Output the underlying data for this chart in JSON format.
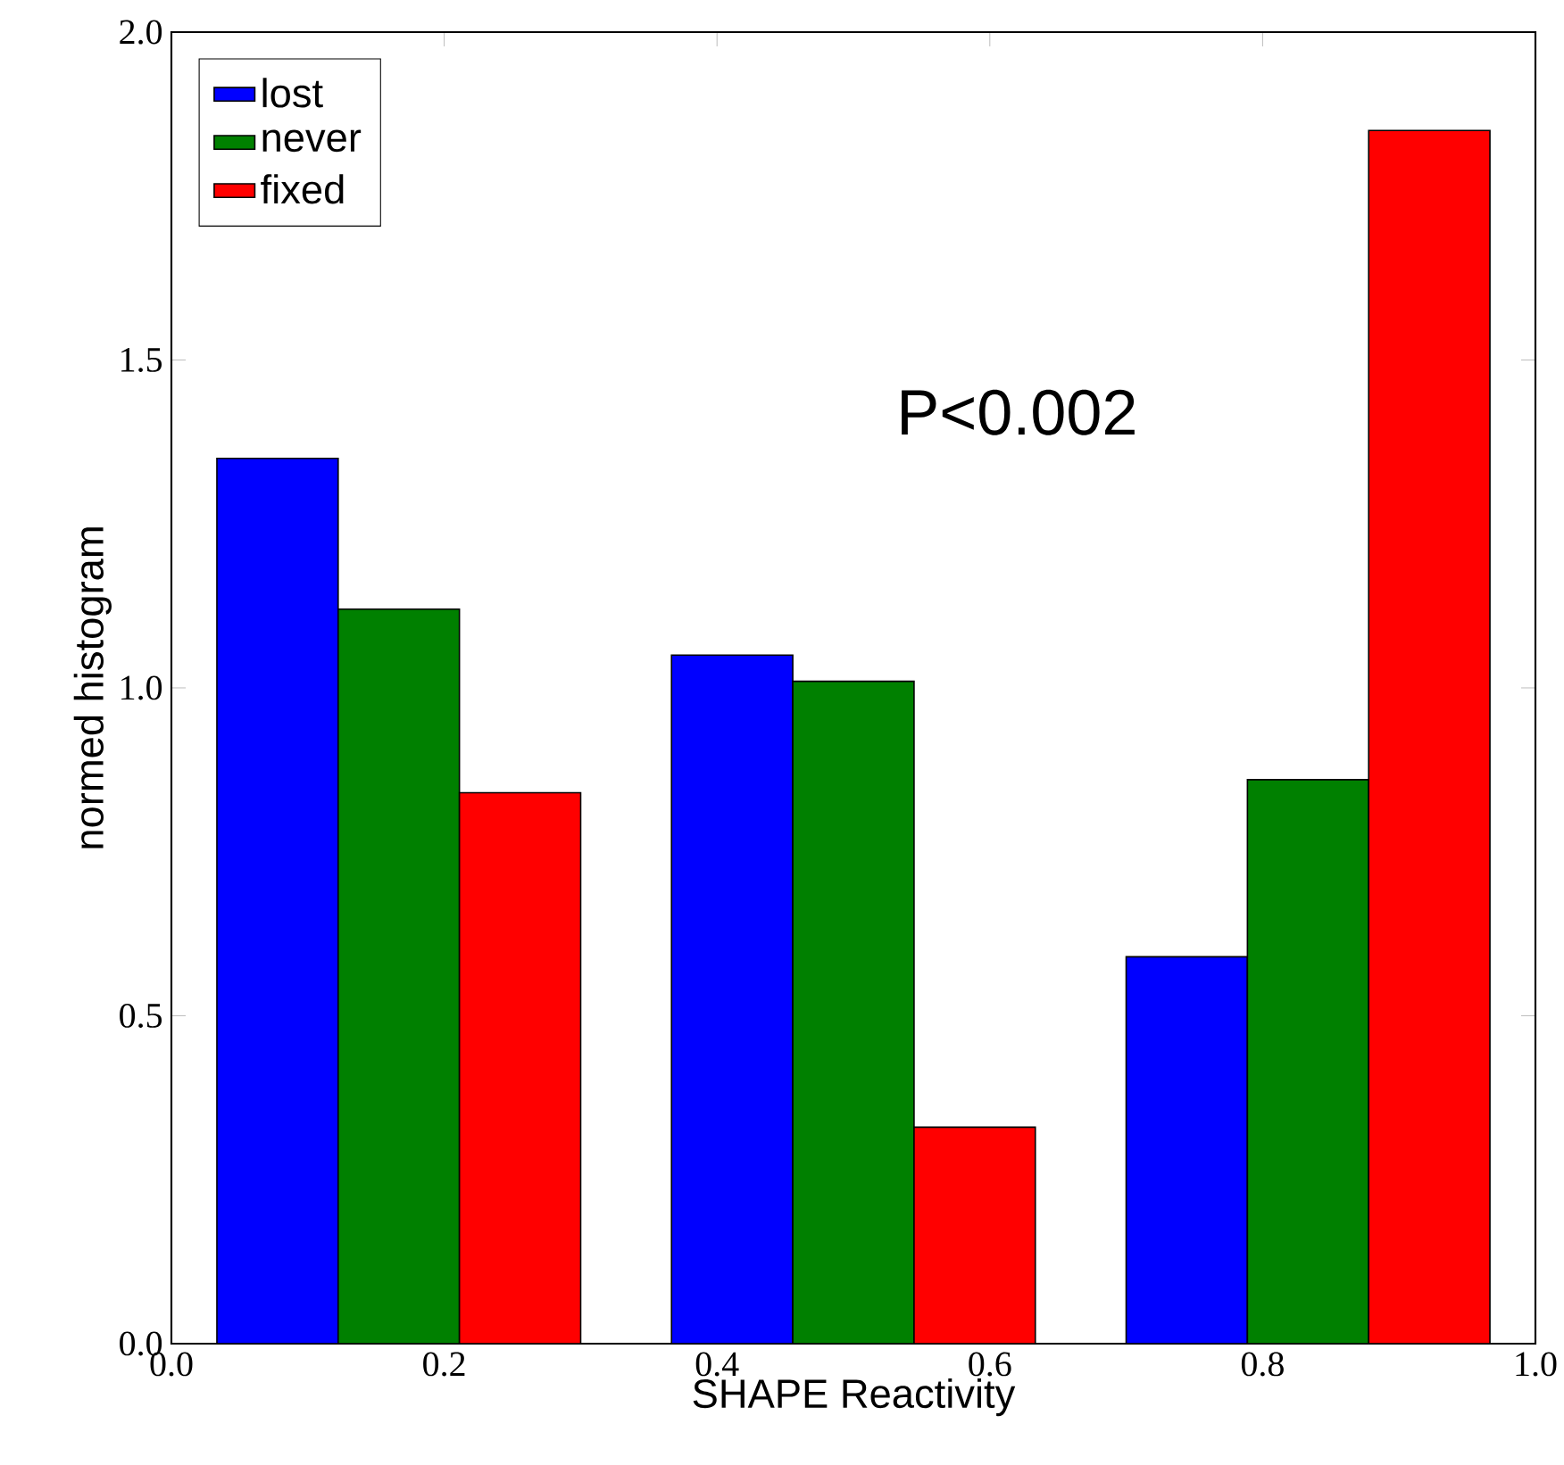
{
  "chart_data": {
    "type": "bar",
    "xlabel": "SHAPE Reactivity",
    "ylabel": "normed histogram",
    "series": [
      {
        "name": "lost",
        "color": "#0000ff",
        "x": [
          0.0778,
          0.4111,
          0.7444
        ],
        "values": [
          1.35,
          1.05,
          0.59
        ]
      },
      {
        "name": "never",
        "color": "#008000",
        "x": [
          0.1667,
          0.5,
          0.8333
        ],
        "values": [
          1.12,
          1.01,
          0.86
        ]
      },
      {
        "name": "fixed",
        "color": "#ff0000",
        "x": [
          0.2556,
          0.5889,
          0.9222
        ],
        "values": [
          0.84,
          0.33,
          1.85
        ]
      }
    ],
    "xlim": [
      0.0,
      1.0
    ],
    "ylim": [
      0.0,
      2.0
    ],
    "xticks": [
      {
        "value": 0.0,
        "label": "0.0"
      },
      {
        "value": 0.2,
        "label": "0.2"
      },
      {
        "value": 0.4,
        "label": "0.4"
      },
      {
        "value": 0.6,
        "label": "0.6"
      },
      {
        "value": 0.8,
        "label": "0.8"
      },
      {
        "value": 1.0,
        "label": "1.0"
      }
    ],
    "yticks": [
      {
        "value": 0.0,
        "label": "0.0"
      },
      {
        "value": 0.5,
        "label": "0.5"
      },
      {
        "value": 1.0,
        "label": "1.0"
      },
      {
        "value": 1.5,
        "label": "1.5"
      },
      {
        "value": 2.0,
        "label": "2.0"
      }
    ],
    "legend": "top left",
    "grid": false,
    "annotations": [
      "P<0.002"
    ]
  }
}
